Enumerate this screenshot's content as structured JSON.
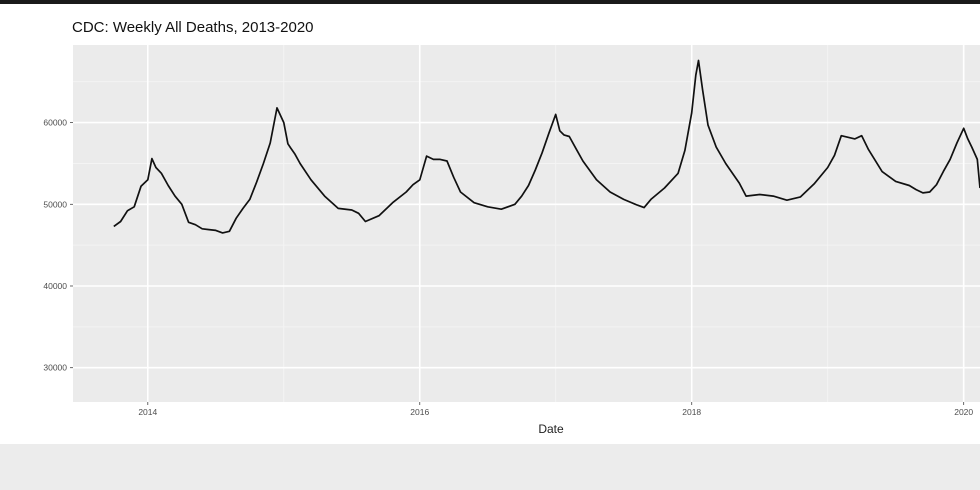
{
  "chart_data": {
    "type": "line",
    "title": "CDC: Weekly All Deaths, 2013-2020",
    "xlabel": "Date",
    "ylabel": "",
    "x_ticks": [
      "2014",
      "2016",
      "2018",
      "2020"
    ],
    "y_ticks": [
      30000,
      40000,
      50000,
      60000
    ],
    "xlim": [
      2013.45,
      2020.12
    ],
    "ylim": [
      25800,
      69500
    ],
    "grid": true,
    "series": [
      {
        "color": "#111111",
        "x": [
          2013.75,
          2013.8,
          2013.85,
          2013.9,
          2013.95,
          2014.0,
          2014.03,
          2014.06,
          2014.1,
          2014.15,
          2014.2,
          2014.25,
          2014.3,
          2014.35,
          2014.4,
          2014.45,
          2014.5,
          2014.55,
          2014.6,
          2014.65,
          2014.7,
          2014.75,
          2014.8,
          2014.85,
          2014.9,
          2014.95,
          2015.0,
          2015.03,
          2015.05,
          2015.08,
          2015.12,
          2015.2,
          2015.3,
          2015.4,
          2015.5,
          2015.55,
          2015.6,
          2015.7,
          2015.8,
          2015.9,
          2015.95,
          2016.0,
          2016.05,
          2016.1,
          2016.15,
          2016.2,
          2016.25,
          2016.3,
          2016.4,
          2016.5,
          2016.6,
          2016.7,
          2016.75,
          2016.8,
          2016.85,
          2016.9,
          2016.95,
          2017.0,
          2017.03,
          2017.06,
          2017.1,
          2017.15,
          2017.2,
          2017.3,
          2017.4,
          2017.5,
          2017.6,
          2017.65,
          2017.7,
          2017.8,
          2017.9,
          2017.95,
          2018.0,
          2018.03,
          2018.05,
          2018.08,
          2018.12,
          2018.18,
          2018.25,
          2018.35,
          2018.4,
          2018.5,
          2018.6,
          2018.7,
          2018.8,
          2018.9,
          2019.0,
          2019.05,
          2019.1,
          2019.15,
          2019.2,
          2019.25,
          2019.3,
          2019.4,
          2019.5,
          2019.6,
          2019.65,
          2019.7,
          2019.75,
          2019.8,
          2019.85,
          2019.9,
          2019.95,
          2020.0,
          2020.03,
          2020.06,
          2020.1,
          2020.12
        ],
        "values": [
          47300,
          47900,
          49200,
          49700,
          52200,
          53000,
          55600,
          54500,
          53800,
          52300,
          51000,
          50000,
          47800,
          47500,
          47000,
          46900,
          46800,
          46500,
          46700,
          48300,
          49500,
          50600,
          52700,
          55000,
          57500,
          61800,
          60000,
          57400,
          56900,
          56200,
          55000,
          53000,
          51000,
          49500,
          49300,
          48900,
          47900,
          48600,
          50200,
          51500,
          52400,
          53000,
          55900,
          55500,
          55500,
          55300,
          53300,
          51500,
          50200,
          49700,
          49400,
          50000,
          51000,
          52300,
          54200,
          56300,
          58700,
          61000,
          59000,
          58500,
          58300,
          56800,
          55300,
          53000,
          51500,
          50600,
          49900,
          49600,
          50600,
          52000,
          53800,
          56600,
          61200,
          65800,
          67600,
          64000,
          59700,
          57000,
          55000,
          52600,
          51000,
          51200,
          51000,
          50500,
          50900,
          52500,
          54500,
          56000,
          58400,
          58200,
          58000,
          58400,
          56700,
          54000,
          52800,
          52300,
          51800,
          51400,
          51500,
          52400,
          54000,
          55500,
          57500,
          59300,
          58000,
          57000,
          55500,
          52000
        ]
      }
    ]
  }
}
